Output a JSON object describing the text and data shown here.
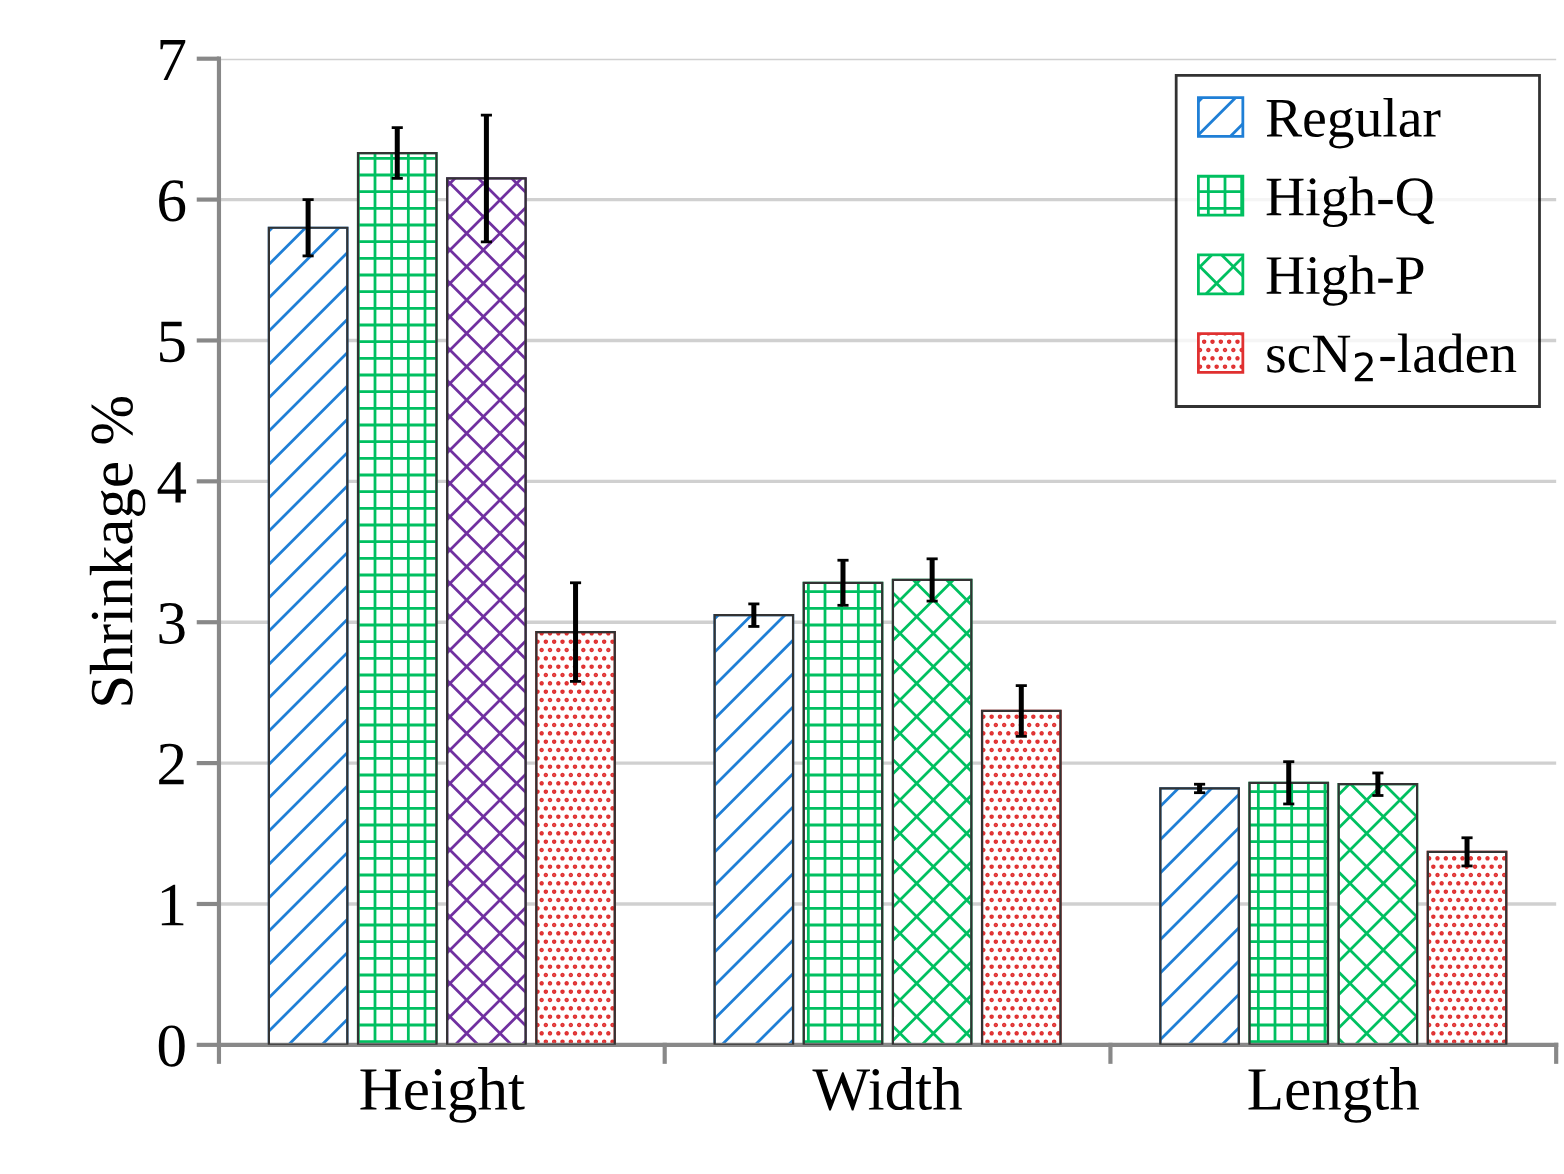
{
  "chart_data": {
    "type": "bar",
    "ylabel": "Shrinkage %",
    "categories": [
      "Height",
      "Width",
      "Length"
    ],
    "series": [
      {
        "name": "Regular",
        "color": "#1f7fd6",
        "values": [
          5.8,
          3.05,
          1.82
        ],
        "errors": [
          0.2,
          0.08,
          0.03
        ]
      },
      {
        "name": "High-Q",
        "color": "#00c060",
        "values": [
          6.33,
          3.28,
          1.86
        ],
        "errors": [
          0.18,
          0.16,
          0.15
        ]
      },
      {
        "name": "High-P",
        "color": "#00c060",
        "colors": [
          "#7030a0",
          "#00c060",
          "#00c060"
        ],
        "values": [
          6.15,
          3.3,
          1.85
        ],
        "errors": [
          0.45,
          0.15,
          0.08
        ]
      },
      {
        "name": "scN$_{2}$-laden",
        "color": "#e03030",
        "values": [
          2.93,
          2.37,
          1.37
        ],
        "errors": [
          0.35,
          0.18,
          0.1
        ]
      }
    ],
    "ylim": [
      0,
      7
    ],
    "yticks": [
      0,
      1,
      2,
      3,
      4,
      5,
      6,
      7
    ],
    "grid": "y",
    "legend": "top right"
  }
}
